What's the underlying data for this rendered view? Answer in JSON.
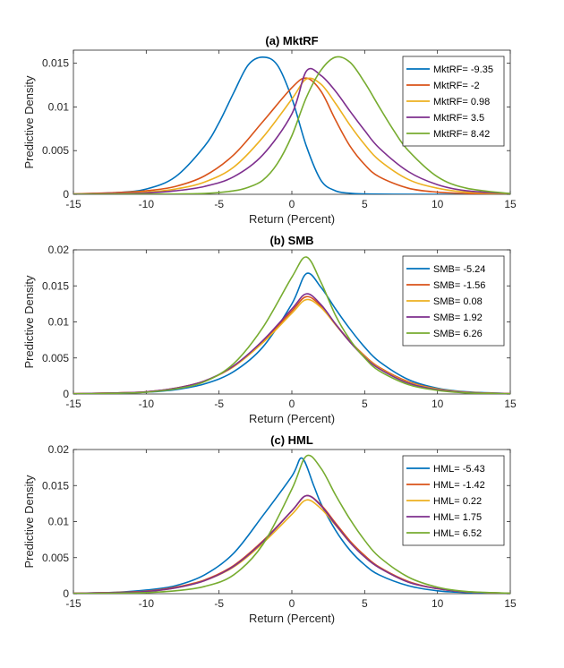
{
  "chart_data": [
    {
      "type": "line",
      "title": "(a) MktRF",
      "xlabel": "Return (Percent)",
      "ylabel": "Predictive Density",
      "xlim": [
        -15,
        15
      ],
      "ylim": [
        0,
        0.0165
      ],
      "xticks": [
        -15,
        -10,
        -5,
        0,
        5,
        10,
        15
      ],
      "xtick_labels": [
        "-15",
        "-10",
        "-5",
        "0",
        "5",
        "10",
        "15"
      ],
      "yticks": [
        0,
        0.005,
        0.01,
        0.015
      ],
      "ytick_labels": [
        "0",
        "0.005",
        "0.01",
        "0.015"
      ],
      "legend_position": "top-right",
      "series": [
        {
          "name": "MktRF= -9.35",
          "color": "#0072BD",
          "x": [
            -15,
            -12,
            -10,
            -8,
            -6,
            -5,
            -4,
            -3,
            -2,
            -1,
            0,
            1,
            2,
            3,
            4,
            5,
            7,
            10,
            15
          ],
          "y": [
            3e-05,
            0.0002,
            0.0006,
            0.002,
            0.0055,
            0.0082,
            0.0116,
            0.0148,
            0.0157,
            0.0148,
            0.011,
            0.0055,
            0.0016,
            0.0004,
            0.00012,
            4e-05,
            1e-05,
            0,
            0
          ]
        },
        {
          "name": "MktRF= -2",
          "color": "#D95319",
          "x": [
            -15,
            -12,
            -10,
            -8,
            -6,
            -4,
            -2,
            0,
            1,
            2,
            3,
            4,
            5,
            6,
            8,
            10,
            12,
            15
          ],
          "y": [
            5e-05,
            0.0002,
            0.0004,
            0.0009,
            0.0021,
            0.0045,
            0.0083,
            0.0122,
            0.0133,
            0.0118,
            0.0085,
            0.0055,
            0.0034,
            0.002,
            0.0007,
            0.00025,
            0.0001,
            2e-05
          ]
        },
        {
          "name": "MktRF= 0.98",
          "color": "#EDB120",
          "x": [
            -15,
            -12,
            -10,
            -8,
            -6,
            -4,
            -2,
            0,
            1,
            2,
            3,
            4,
            5,
            6,
            8,
            10,
            12,
            15
          ],
          "y": [
            3e-05,
            0.0001,
            0.00025,
            0.0006,
            0.0014,
            0.0031,
            0.0065,
            0.0109,
            0.0132,
            0.0126,
            0.0104,
            0.0079,
            0.0057,
            0.0039,
            0.0017,
            0.0007,
            0.00025,
            5e-05
          ]
        },
        {
          "name": "MktRF= 3.5",
          "color": "#7E2F8E",
          "x": [
            -15,
            -12,
            -10,
            -8,
            -6,
            -4,
            -2,
            0,
            1,
            2,
            3,
            4,
            5,
            6,
            8,
            10,
            12,
            15
          ],
          "y": [
            2e-05,
            7e-05,
            0.00015,
            0.0004,
            0.0009,
            0.002,
            0.0045,
            0.0092,
            0.0141,
            0.0136,
            0.0118,
            0.0095,
            0.0073,
            0.0053,
            0.0026,
            0.0011,
            0.0004,
            8e-05
          ]
        },
        {
          "name": "MktRF= 8.42",
          "color": "#77AC30",
          "x": [
            -15,
            -10,
            -6,
            -4,
            -3,
            -2,
            -1,
            0,
            1,
            2,
            3,
            4,
            5,
            6,
            7,
            8,
            10,
            12,
            15
          ],
          "y": [
            0,
            2e-05,
            0.0001,
            0.0004,
            0.0008,
            0.0016,
            0.0035,
            0.0067,
            0.0111,
            0.0142,
            0.0157,
            0.0151,
            0.0128,
            0.01,
            0.0073,
            0.005,
            0.002,
            0.0007,
            8e-05
          ]
        }
      ]
    },
    {
      "type": "line",
      "title": "(b) SMB",
      "xlabel": "Return (Percent)",
      "ylabel": "Predictive Density",
      "xlim": [
        -15,
        15
      ],
      "ylim": [
        0,
        0.02
      ],
      "xticks": [
        -15,
        -10,
        -5,
        0,
        5,
        10,
        15
      ],
      "xtick_labels": [
        "-15",
        "-10",
        "-5",
        "0",
        "5",
        "10",
        "15"
      ],
      "yticks": [
        0,
        0.005,
        0.01,
        0.015,
        0.02
      ],
      "ytick_labels": [
        "0",
        "0.005",
        "0.01",
        "0.015",
        "0.02"
      ],
      "legend_position": "top-right",
      "series": [
        {
          "name": "SMB= -5.24",
          "color": "#0072BD",
          "x": [
            -15,
            -12,
            -10,
            -8,
            -6,
            -4,
            -2,
            0,
            1,
            2,
            3,
            4,
            5,
            6,
            8,
            10,
            12,
            15
          ],
          "y": [
            3e-05,
            0.0001,
            0.00025,
            0.0006,
            0.0014,
            0.0031,
            0.0065,
            0.0125,
            0.0167,
            0.0148,
            0.0118,
            0.009,
            0.0065,
            0.0045,
            0.002,
            0.0008,
            0.0003,
            6e-05
          ]
        },
        {
          "name": "SMB= -1.56",
          "color": "#D95319",
          "x": [
            -15,
            -12,
            -10,
            -8,
            -6,
            -4,
            -2,
            0,
            1,
            2,
            3,
            4,
            5,
            6,
            8,
            10,
            12,
            15
          ],
          "y": [
            4e-05,
            0.00015,
            0.0003,
            0.0008,
            0.0018,
            0.0038,
            0.0072,
            0.0115,
            0.0135,
            0.0122,
            0.0097,
            0.0073,
            0.0053,
            0.0037,
            0.0017,
            0.0007,
            0.00025,
            5e-05
          ]
        },
        {
          "name": "SMB= 0.08",
          "color": "#EDB120",
          "x": [
            -15,
            -12,
            -10,
            -8,
            -6,
            -4,
            -2,
            0,
            1,
            2,
            3,
            4,
            5,
            6,
            8,
            10,
            12,
            15
          ],
          "y": [
            4e-05,
            0.00015,
            0.0003,
            0.0008,
            0.0018,
            0.0038,
            0.0071,
            0.0112,
            0.0131,
            0.012,
            0.0096,
            0.0072,
            0.0052,
            0.0036,
            0.0016,
            0.0007,
            0.00025,
            5e-05
          ]
        },
        {
          "name": "SMB= 1.92",
          "color": "#7E2F8E",
          "x": [
            -15,
            -12,
            -10,
            -8,
            -6,
            -4,
            -2,
            0,
            1,
            2,
            3,
            4,
            5,
            6,
            8,
            10,
            12,
            15
          ],
          "y": [
            4e-05,
            0.00015,
            0.0003,
            0.0008,
            0.0018,
            0.0039,
            0.0074,
            0.0118,
            0.0139,
            0.0124,
            0.0097,
            0.0072,
            0.0051,
            0.0035,
            0.0015,
            0.0006,
            0.0002,
            4e-05
          ]
        },
        {
          "name": "SMB= 6.26",
          "color": "#77AC30",
          "x": [
            -15,
            -12,
            -10,
            -8,
            -6,
            -4,
            -2,
            0,
            1,
            2,
            3,
            4,
            5,
            6,
            8,
            10,
            12,
            15
          ],
          "y": [
            2e-05,
            0.0001,
            0.00025,
            0.0007,
            0.0017,
            0.0042,
            0.0092,
            0.0162,
            0.019,
            0.0155,
            0.0109,
            0.0075,
            0.005,
            0.0032,
            0.0013,
            0.0005,
            0.00015,
            3e-05
          ]
        }
      ]
    },
    {
      "type": "line",
      "title": "(c) HML",
      "xlabel": "Return (Percent)",
      "ylabel": "Predictive Density",
      "xlim": [
        -15,
        15
      ],
      "ylim": [
        0,
        0.02
      ],
      "xticks": [
        -15,
        -10,
        -5,
        0,
        5,
        10,
        15
      ],
      "xtick_labels": [
        "-15",
        "-10",
        "-5",
        "0",
        "5",
        "10",
        "15"
      ],
      "yticks": [
        0,
        0.005,
        0.01,
        0.015,
        0.02
      ],
      "ytick_labels": [
        "0",
        "0.005",
        "0.01",
        "0.015",
        "0.02"
      ],
      "legend_position": "top-right",
      "series": [
        {
          "name": "HML= -5.43",
          "color": "#0072BD",
          "x": [
            -15,
            -12,
            -10,
            -8,
            -6,
            -4,
            -2,
            0,
            0.7,
            1.5,
            2,
            3,
            4,
            5,
            6,
            8,
            10,
            12,
            15
          ],
          "y": [
            5e-05,
            0.0002,
            0.0005,
            0.0011,
            0.0026,
            0.0056,
            0.0108,
            0.0163,
            0.0188,
            0.015,
            0.0125,
            0.0088,
            0.006,
            0.004,
            0.0026,
            0.0011,
            0.0004,
            0.00015,
            3e-05
          ]
        },
        {
          "name": "HML= -1.42",
          "color": "#D95319",
          "x": [
            -15,
            -12,
            -10,
            -8,
            -6,
            -4,
            -2,
            0,
            1,
            2,
            3,
            4,
            5,
            6,
            8,
            10,
            12,
            15
          ],
          "y": [
            5e-05,
            0.00018,
            0.00035,
            0.0009,
            0.0019,
            0.0039,
            0.0073,
            0.0115,
            0.0136,
            0.0123,
            0.0098,
            0.0073,
            0.0053,
            0.0037,
            0.0017,
            0.0007,
            0.00025,
            5e-05
          ]
        },
        {
          "name": "HML= 0.22",
          "color": "#EDB120",
          "x": [
            -15,
            -12,
            -10,
            -8,
            -6,
            -4,
            -2,
            0,
            1,
            2,
            3,
            4,
            5,
            6,
            8,
            10,
            12,
            15
          ],
          "y": [
            4e-05,
            0.00015,
            0.0003,
            0.0008,
            0.0018,
            0.0037,
            0.007,
            0.011,
            0.013,
            0.0118,
            0.0095,
            0.0071,
            0.0051,
            0.0036,
            0.0016,
            0.0007,
            0.00025,
            5e-05
          ]
        },
        {
          "name": "HML= 1.75",
          "color": "#7E2F8E",
          "x": [
            -15,
            -12,
            -10,
            -8,
            -6,
            -4,
            -2,
            0,
            1,
            2,
            3,
            4,
            5,
            6,
            8,
            10,
            12,
            15
          ],
          "y": [
            4e-05,
            0.00015,
            0.0003,
            0.0008,
            0.0018,
            0.0038,
            0.0072,
            0.0115,
            0.0136,
            0.0122,
            0.0096,
            0.0071,
            0.0051,
            0.0036,
            0.0016,
            0.0007,
            0.00025,
            5e-05
          ]
        },
        {
          "name": "HML= 6.52",
          "color": "#77AC30",
          "x": [
            -15,
            -12,
            -10,
            -8,
            -6,
            -4,
            -2,
            0,
            1,
            2,
            3,
            4,
            5,
            6,
            8,
            10,
            12,
            15
          ],
          "y": [
            2e-05,
            7e-05,
            0.00015,
            0.0004,
            0.001,
            0.0026,
            0.0068,
            0.0145,
            0.0191,
            0.0174,
            0.0137,
            0.0103,
            0.0074,
            0.0051,
            0.0023,
            0.0009,
            0.0003,
            6e-05
          ]
        }
      ]
    }
  ]
}
